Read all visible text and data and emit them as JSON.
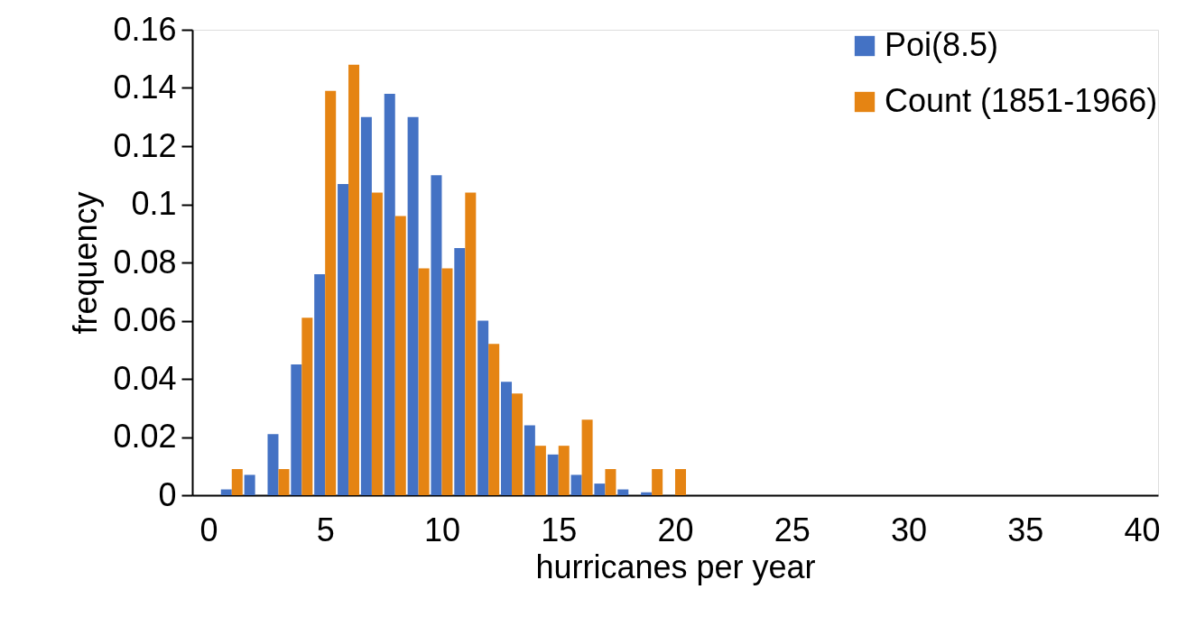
{
  "chart_data": {
    "type": "bar",
    "xlabel": "hurricanes per year",
    "ylabel": "frequency",
    "x": [
      0,
      1,
      2,
      3,
      4,
      5,
      6,
      7,
      8,
      9,
      10,
      11,
      12,
      13,
      14,
      15,
      16,
      17,
      18,
      19,
      20,
      21,
      22,
      23,
      24,
      25,
      26,
      27,
      28,
      29,
      30,
      31,
      32,
      33,
      34,
      35,
      36,
      37,
      38,
      39,
      40
    ],
    "series": [
      {
        "name": "Poi(8.5)",
        "color": "#4472c4",
        "values": [
          0,
          0.002,
          0.007,
          0.021,
          0.045,
          0.076,
          0.107,
          0.13,
          0.138,
          0.13,
          0.11,
          0.085,
          0.06,
          0.039,
          0.024,
          0.014,
          0.007,
          0.004,
          0.002,
          0.001,
          0,
          0,
          0,
          0,
          0,
          0,
          0,
          0,
          0,
          0,
          0,
          0,
          0,
          0,
          0,
          0,
          0,
          0,
          0,
          0,
          0
        ]
      },
      {
        "name": "Count (1851-1966)",
        "color": "#e58413",
        "values": [
          0,
          0.009,
          0,
          0.009,
          0.061,
          0.139,
          0.148,
          0.104,
          0.096,
          0.078,
          0.078,
          0.104,
          0.052,
          0.035,
          0.017,
          0.017,
          0.026,
          0.009,
          0,
          0.009,
          0.009,
          0,
          0,
          0,
          0,
          0,
          0,
          0,
          0,
          0,
          0,
          0,
          0,
          0,
          0,
          0,
          0,
          0,
          0,
          0,
          0
        ]
      }
    ],
    "xlim": [
      -0.5,
      40.5
    ],
    "xticks": [
      0,
      5,
      10,
      15,
      20,
      25,
      30,
      35,
      40
    ],
    "ylim": [
      0,
      0.16
    ],
    "yticks": [
      0,
      0.02,
      0.04,
      0.06,
      0.08,
      0.1,
      0.12,
      0.14,
      0.16
    ],
    "grid": false,
    "legend": "top right"
  }
}
